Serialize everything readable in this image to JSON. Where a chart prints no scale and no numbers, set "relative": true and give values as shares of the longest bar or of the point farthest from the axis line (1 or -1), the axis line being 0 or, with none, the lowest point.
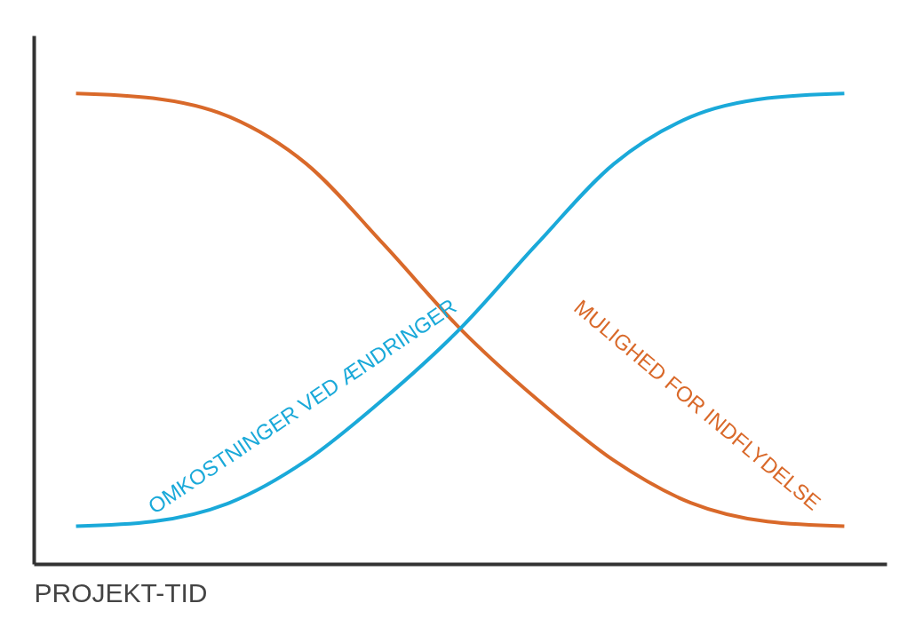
{
  "chart_data": {
    "type": "line",
    "xlabel": "PROJEKT-TID",
    "relative": true,
    "categories": [
      null,
      null,
      null,
      null,
      null,
      null,
      null,
      null,
      null,
      null,
      null
    ],
    "series": [
      {
        "name": "MULIGHED FOR INDFLYDELSE",
        "color": "#d9692a",
        "values": [
          1.0,
          0.99,
          0.95,
          0.85,
          0.68,
          0.5,
          0.35,
          0.22,
          0.13,
          0.09,
          0.08
        ]
      },
      {
        "name": "OMKOSTNINGER VED ÆNDRINGER",
        "color": "#1aa9d9",
        "values": [
          0.08,
          0.09,
          0.13,
          0.22,
          0.35,
          0.5,
          0.68,
          0.85,
          0.95,
          0.99,
          1.0
        ]
      }
    ]
  }
}
